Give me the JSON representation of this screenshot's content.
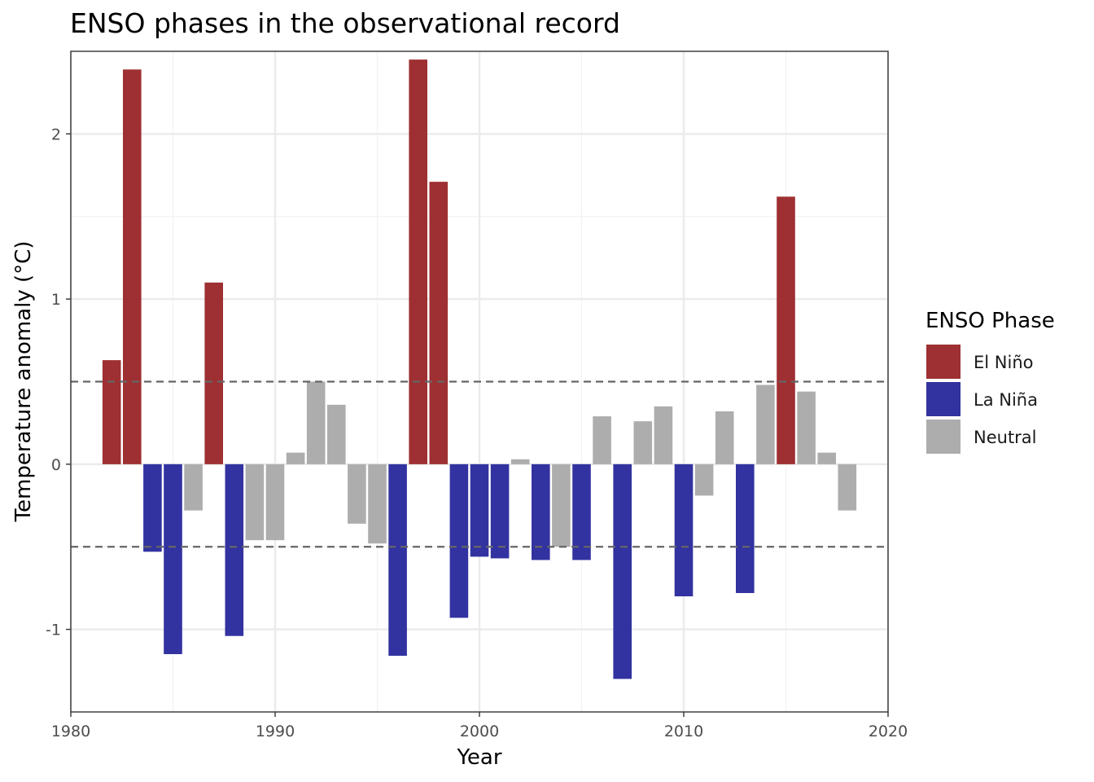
{
  "chart_data": {
    "type": "bar",
    "title": "ENSO phases in the observational record",
    "xlabel": "Year",
    "ylabel": "Temperature anomaly (°C)",
    "xlim": [
      1980,
      2020
    ],
    "ylim": [
      -1.5,
      2.5
    ],
    "x_ticks": [
      1980,
      1990,
      2000,
      2010,
      2020
    ],
    "y_ticks": [
      -1,
      0,
      1,
      2
    ],
    "y_tick_labels": [
      "-1",
      "0",
      "1",
      "2"
    ],
    "reference_lines": [
      0.5,
      -0.5
    ],
    "grid": true,
    "legend": {
      "title": "ENSO Phase",
      "position": "right",
      "entries": [
        {
          "name": "El Niño",
          "color": "#9E2F32"
        },
        {
          "name": "La Niña",
          "color": "#3232A0"
        },
        {
          "name": "Neutral",
          "color": "#ADADAD"
        }
      ]
    },
    "points": [
      {
        "year": 1982,
        "value": 0.63,
        "phase": "El Niño"
      },
      {
        "year": 1983,
        "value": 2.39,
        "phase": "El Niño"
      },
      {
        "year": 1984,
        "value": -0.53,
        "phase": "La Niña"
      },
      {
        "year": 1985,
        "value": -1.15,
        "phase": "La Niña"
      },
      {
        "year": 1986,
        "value": -0.28,
        "phase": "Neutral"
      },
      {
        "year": 1987,
        "value": 1.1,
        "phase": "El Niño"
      },
      {
        "year": 1988,
        "value": -1.04,
        "phase": "La Niña"
      },
      {
        "year": 1989,
        "value": -0.46,
        "phase": "Neutral"
      },
      {
        "year": 1990,
        "value": -0.46,
        "phase": "Neutral"
      },
      {
        "year": 1991,
        "value": 0.07,
        "phase": "Neutral"
      },
      {
        "year": 1992,
        "value": 0.5,
        "phase": "Neutral"
      },
      {
        "year": 1993,
        "value": 0.36,
        "phase": "Neutral"
      },
      {
        "year": 1994,
        "value": -0.36,
        "phase": "Neutral"
      },
      {
        "year": 1995,
        "value": -0.48,
        "phase": "Neutral"
      },
      {
        "year": 1996,
        "value": -1.16,
        "phase": "La Niña"
      },
      {
        "year": 1997,
        "value": 2.45,
        "phase": "El Niño"
      },
      {
        "year": 1998,
        "value": 1.71,
        "phase": "El Niño"
      },
      {
        "year": 1999,
        "value": -0.93,
        "phase": "La Niña"
      },
      {
        "year": 2000,
        "value": -0.56,
        "phase": "La Niña"
      },
      {
        "year": 2001,
        "value": -0.57,
        "phase": "La Niña"
      },
      {
        "year": 2002,
        "value": 0.03,
        "phase": "Neutral"
      },
      {
        "year": 2003,
        "value": -0.58,
        "phase": "La Niña"
      },
      {
        "year": 2004,
        "value": -0.5,
        "phase": "Neutral"
      },
      {
        "year": 2005,
        "value": -0.58,
        "phase": "La Niña"
      },
      {
        "year": 2006,
        "value": 0.29,
        "phase": "Neutral"
      },
      {
        "year": 2007,
        "value": -1.3,
        "phase": "La Niña"
      },
      {
        "year": 2008,
        "value": 0.26,
        "phase": "Neutral"
      },
      {
        "year": 2009,
        "value": 0.35,
        "phase": "Neutral"
      },
      {
        "year": 2010,
        "value": -0.8,
        "phase": "La Niña"
      },
      {
        "year": 2011,
        "value": -0.19,
        "phase": "Neutral"
      },
      {
        "year": 2012,
        "value": 0.32,
        "phase": "Neutral"
      },
      {
        "year": 2013,
        "value": -0.78,
        "phase": "La Niña"
      },
      {
        "year": 2014,
        "value": 0.48,
        "phase": "Neutral"
      },
      {
        "year": 2015,
        "value": 1.62,
        "phase": "El Niño"
      },
      {
        "year": 2016,
        "value": 0.44,
        "phase": "Neutral"
      },
      {
        "year": 2017,
        "value": 0.07,
        "phase": "Neutral"
      },
      {
        "year": 2018,
        "value": -0.28,
        "phase": "Neutral"
      }
    ]
  }
}
